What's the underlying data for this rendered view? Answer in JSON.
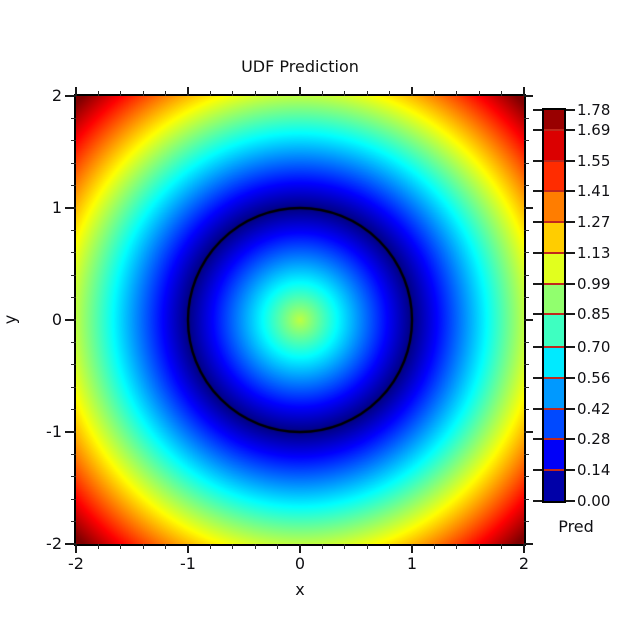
{
  "title": "UDF Prediction",
  "axes": {
    "xlabel": "x",
    "ylabel": "y",
    "x_range": [
      -2,
      2
    ],
    "y_range": [
      -2,
      2
    ],
    "x_major_ticks": [
      -2,
      -1,
      0,
      1,
      2
    ],
    "y_major_ticks": [
      -2,
      -1,
      0,
      1,
      2
    ],
    "x_major_tick_labels": [
      "-2",
      "-1",
      "0",
      "1",
      "2"
    ],
    "y_major_tick_labels": [
      "-2",
      "-1",
      "0",
      "1",
      "2"
    ],
    "minor_tick_step": 0.2,
    "tick_color": "#1a1a1a",
    "frame_color": "#000000"
  },
  "colorbar": {
    "label": "Pred",
    "min": 0.0,
    "max": 1.78,
    "tick_values": [
      0.0,
      0.14,
      0.28,
      0.42,
      0.56,
      0.7,
      0.85,
      0.99,
      1.13,
      1.27,
      1.41,
      1.55,
      1.69,
      1.78
    ],
    "tick_labels": [
      "0.00",
      "0.14",
      "0.28",
      "0.42",
      "0.56",
      "0.70",
      "0.85",
      "0.99",
      "1.13",
      "1.27",
      "1.41",
      "1.55",
      "1.69",
      "1.78"
    ],
    "band_colors": [
      "#0000A8",
      "#0000F8",
      "#0049FF",
      "#0099FF",
      "#00EAFF",
      "#3EFFC1",
      "#91FF6E",
      "#E1FF1E",
      "#FFCD00",
      "#FF7D00",
      "#FF2C00",
      "#DB0000",
      "#990000"
    ],
    "boundary_line_color": "#c0281c"
  },
  "chart_data": {
    "type": "heatmap",
    "title": "UDF Prediction",
    "xlabel": "x",
    "ylabel": "y",
    "x_range": [
      -2,
      2
    ],
    "y_range": [
      -2,
      2
    ],
    "value_function": "abs(sqrt(x^2 + y^2) - 1) — unsigned distance to the unit circle",
    "clim": [
      0,
      1.78
    ],
    "colormap": "jet",
    "colorbar_label": "Pred",
    "contour": {
      "shape": "circle",
      "center": [
        0,
        0
      ],
      "radius": 1,
      "line_color": "#000000"
    },
    "sample_grid": {
      "x": [
        -2,
        -1.5,
        -1,
        -0.5,
        0,
        0.5,
        1,
        1.5,
        2
      ],
      "y": [
        2,
        1.5,
        1,
        0.5,
        0,
        -0.5,
        -1,
        -1.5,
        -2
      ],
      "values": [
        [
          1.83,
          1.5,
          1.24,
          1.06,
          1.0,
          1.06,
          1.24,
          1.5,
          1.83
        ],
        [
          1.5,
          1.12,
          0.8,
          0.58,
          0.5,
          0.58,
          0.8,
          1.12,
          1.5
        ],
        [
          1.24,
          0.8,
          0.41,
          0.12,
          0.0,
          0.12,
          0.41,
          0.8,
          1.24
        ],
        [
          1.06,
          0.58,
          0.12,
          0.29,
          0.5,
          0.29,
          0.12,
          0.58,
          1.06
        ],
        [
          1.0,
          0.5,
          0.0,
          0.5,
          1.0,
          0.5,
          0.0,
          0.5,
          1.0
        ],
        [
          1.06,
          0.58,
          0.12,
          0.29,
          0.5,
          0.29,
          0.12,
          0.58,
          1.06
        ],
        [
          1.24,
          0.8,
          0.41,
          0.12,
          0.0,
          0.12,
          0.41,
          0.8,
          1.24
        ],
        [
          1.5,
          1.12,
          0.8,
          0.58,
          0.5,
          0.58,
          0.8,
          1.12,
          1.5
        ],
        [
          1.83,
          1.5,
          1.24,
          1.06,
          1.0,
          1.06,
          1.24,
          1.5,
          1.83
        ]
      ]
    }
  }
}
